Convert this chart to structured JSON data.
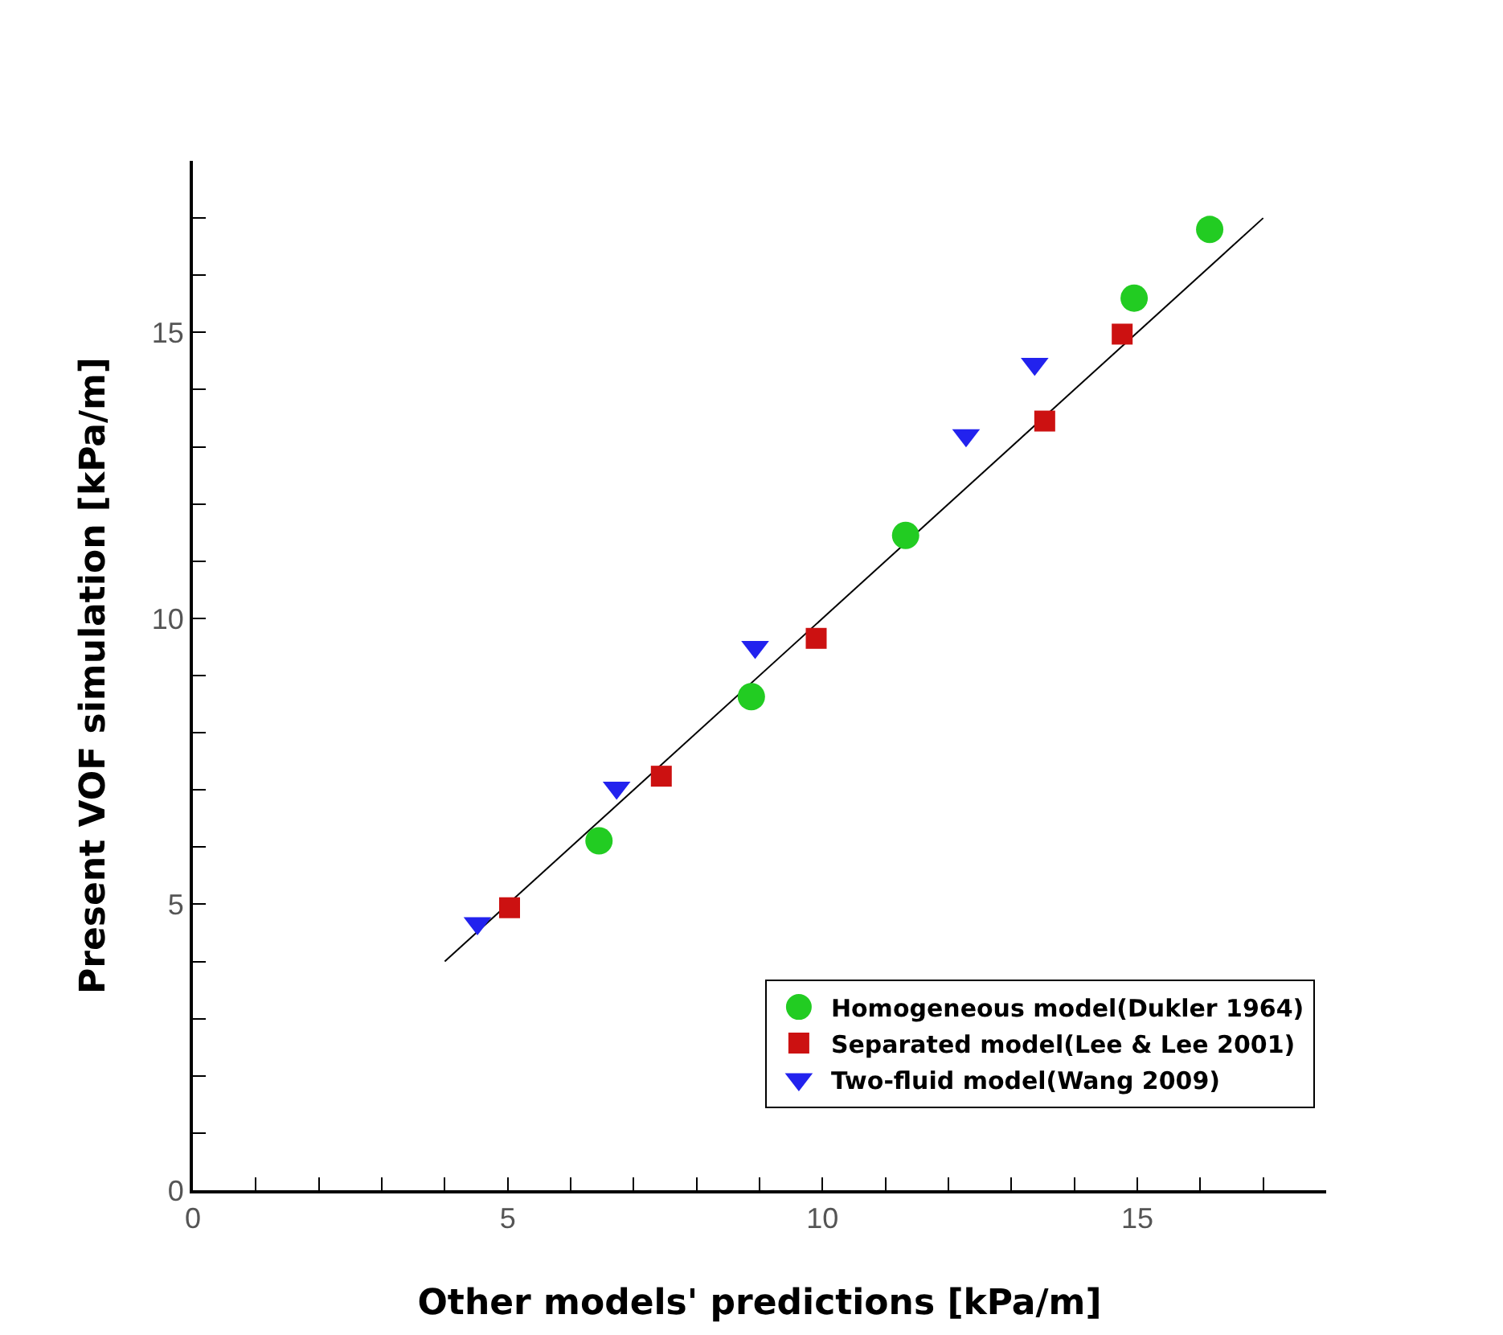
{
  "chart_data": {
    "type": "scatter",
    "xlabel": "Other models' predictions [kPa/m]",
    "ylabel": "Present VOF simulation [kPa/m]",
    "series": [
      {
        "name": "Homogeneous model(Dukler 1964)",
        "color": "#22cc22",
        "marker": "circle",
        "x": [
          6.45,
          8.87,
          11.32,
          14.95,
          16.15
        ],
        "values": [
          6.11,
          8.63,
          11.45,
          15.6,
          16.8
        ]
      },
      {
        "name": "Separated model(Lee & Lee 2001)",
        "color": "#cc1111",
        "marker": "square",
        "x": [
          5.03,
          7.44,
          9.9,
          13.53,
          14.76
        ],
        "values": [
          4.94,
          7.24,
          9.65,
          13.45,
          14.97
        ]
      },
      {
        "name": "Two-fluid model(Wang 2009)",
        "color": "#2222ee",
        "marker": "triangle",
        "x": [
          4.52,
          6.73,
          8.93,
          12.28,
          13.37
        ],
        "values": [
          4.67,
          7.04,
          9.5,
          13.2,
          14.45
        ]
      },
      {
        "type": "line",
        "color": "#000000",
        "marker": "none",
        "line_style": "solid",
        "x": [
          4,
          17
        ],
        "values": [
          4,
          17
        ]
      }
    ],
    "xlim": [
      0,
      18
    ],
    "ylim": [
      0,
      18
    ],
    "xticks": [
      0,
      {
        "value": 1,
        "label": null
      },
      {
        "value": 2,
        "label": null
      },
      {
        "value": 3,
        "label": null
      },
      {
        "value": 4,
        "label": null
      },
      5,
      {
        "value": 6,
        "label": null
      },
      {
        "value": 7,
        "label": null
      },
      {
        "value": 8,
        "label": null
      },
      {
        "value": 9,
        "label": null
      },
      10,
      {
        "value": 11,
        "label": null
      },
      {
        "value": 12,
        "label": null
      },
      {
        "value": 13,
        "label": null
      },
      {
        "value": 14,
        "label": null
      },
      15,
      {
        "value": 16,
        "label": null
      },
      {
        "value": 17,
        "label": null
      }
    ],
    "yticks": [
      0,
      {
        "value": 1,
        "label": null
      },
      {
        "value": 2,
        "label": null
      },
      {
        "value": 3,
        "label": null
      },
      {
        "value": 4,
        "label": null
      },
      5,
      {
        "value": 6,
        "label": null
      },
      {
        "value": 7,
        "label": null
      },
      {
        "value": 8,
        "label": null
      },
      {
        "value": 9,
        "label": null
      },
      10,
      {
        "value": 11,
        "label": null
      },
      {
        "value": 12,
        "label": null
      },
      {
        "value": 13,
        "label": null
      },
      {
        "value": 14,
        "label": null
      },
      15,
      {
        "value": 16,
        "label": null
      },
      {
        "value": 17,
        "label": null
      }
    ],
    "grid": false,
    "legend": "bottom right"
  }
}
